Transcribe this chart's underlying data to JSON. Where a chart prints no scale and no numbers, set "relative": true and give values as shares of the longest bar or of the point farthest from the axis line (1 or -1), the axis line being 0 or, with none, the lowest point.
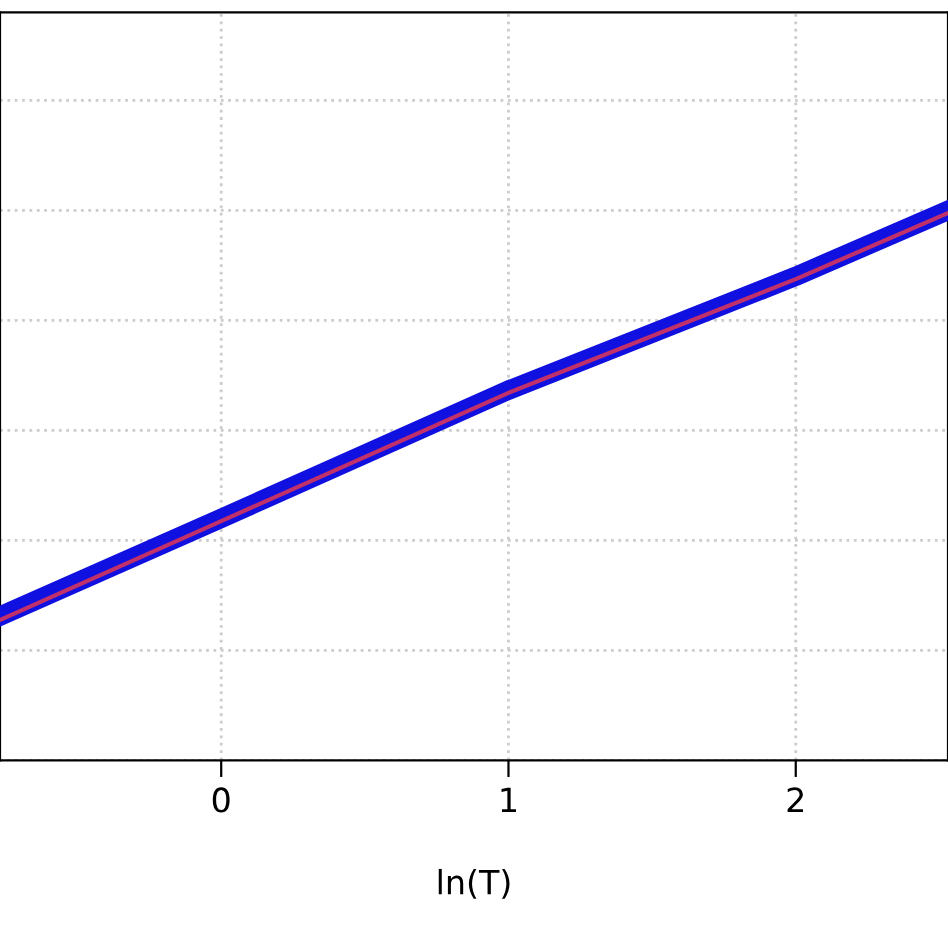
{
  "chart_data": {
    "type": "line",
    "xlabel": "ln(T)",
    "relative": true,
    "x": [
      -0.77,
      0,
      1,
      2,
      2.53
    ],
    "xlim": [
      -0.77,
      2.53
    ],
    "xticks": [
      0,
      1,
      2
    ],
    "grid": true,
    "line_style": "solid",
    "marker": "none",
    "series": [
      {
        "color": "#1010e0",
        "values": [
          0.262,
          0.44,
          0.673,
          0.88,
          1
        ]
      },
      {
        "color": "#c0306a",
        "values": [
          0.255,
          0.435,
          0.668,
          0.875,
          0.995
        ]
      }
    ]
  }
}
